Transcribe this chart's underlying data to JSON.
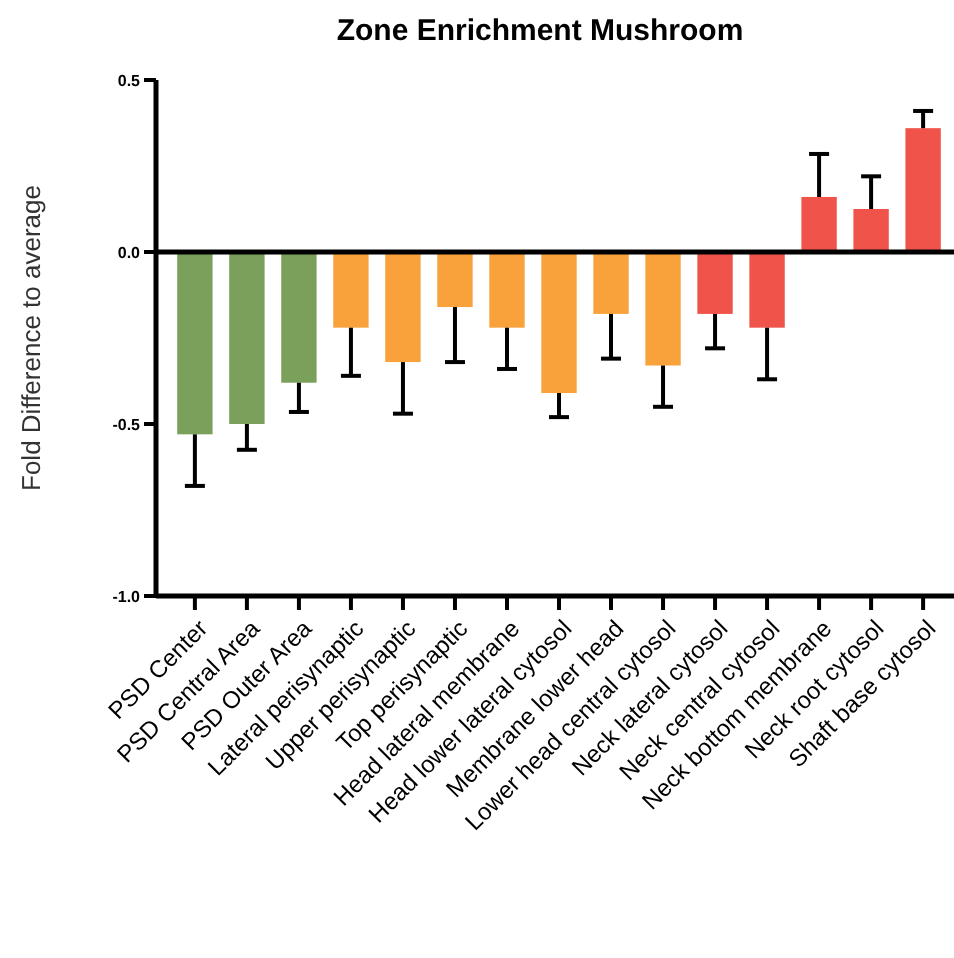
{
  "chart_data": {
    "type": "bar",
    "title": "Zone Enrichment Mushroom",
    "ylabel": "Fold Difference to average",
    "categories": [
      "PSD Center",
      "PSD Central Area",
      "PSD Outer Area",
      "Lateral perisynaptic",
      "Upper perisynaptic",
      "Top perisynaptic",
      "Head lateral membrane",
      "Head lower lateral cytosol",
      "Membrane lower head",
      "Lower head central cytosol",
      "Neck lateral cytosol",
      "Neck central cytosol",
      "Neck bottom membrane",
      "Neck root cytosol",
      "Shaft base cytosol"
    ],
    "values": [
      -0.53,
      -0.5,
      -0.38,
      -0.22,
      -0.32,
      -0.16,
      -0.22,
      -0.41,
      -0.18,
      -0.33,
      -0.18,
      -0.22,
      0.16,
      0.125,
      0.36
    ],
    "errors": [
      [
        -0.68,
        -0.53
      ],
      [
        -0.575,
        -0.5
      ],
      [
        -0.465,
        -0.38
      ],
      [
        -0.36,
        -0.22
      ],
      [
        -0.47,
        -0.32
      ],
      [
        -0.32,
        -0.16
      ],
      [
        -0.34,
        -0.22
      ],
      [
        -0.48,
        -0.41
      ],
      [
        -0.31,
        -0.18
      ],
      [
        -0.45,
        -0.33
      ],
      [
        -0.28,
        -0.18
      ],
      [
        -0.37,
        -0.22
      ],
      [
        0.16,
        0.285
      ],
      [
        0.125,
        0.22
      ],
      [
        0.36,
        0.41
      ]
    ],
    "colors": [
      "#7ba05b",
      "#7ba05b",
      "#7ba05b",
      "#f9a23b",
      "#f9a23b",
      "#f9a23b",
      "#f9a23b",
      "#f9a23b",
      "#f9a23b",
      "#f9a23b",
      "#f0534a",
      "#f0534a",
      "#f0534a",
      "#f0534a",
      "#f0534a"
    ],
    "ylim": [
      -1,
      0.5
    ],
    "yticks": [
      {
        "value": -1,
        "label": "-1.0"
      },
      {
        "value": -0.5,
        "label": "-0.5"
      },
      {
        "value": 0,
        "label": "0.0"
      },
      0.5
    ],
    "ref_lines": [
      {
        "axis": "y",
        "value": 0,
        "color": "#000000"
      }
    ],
    "grid": false
  }
}
